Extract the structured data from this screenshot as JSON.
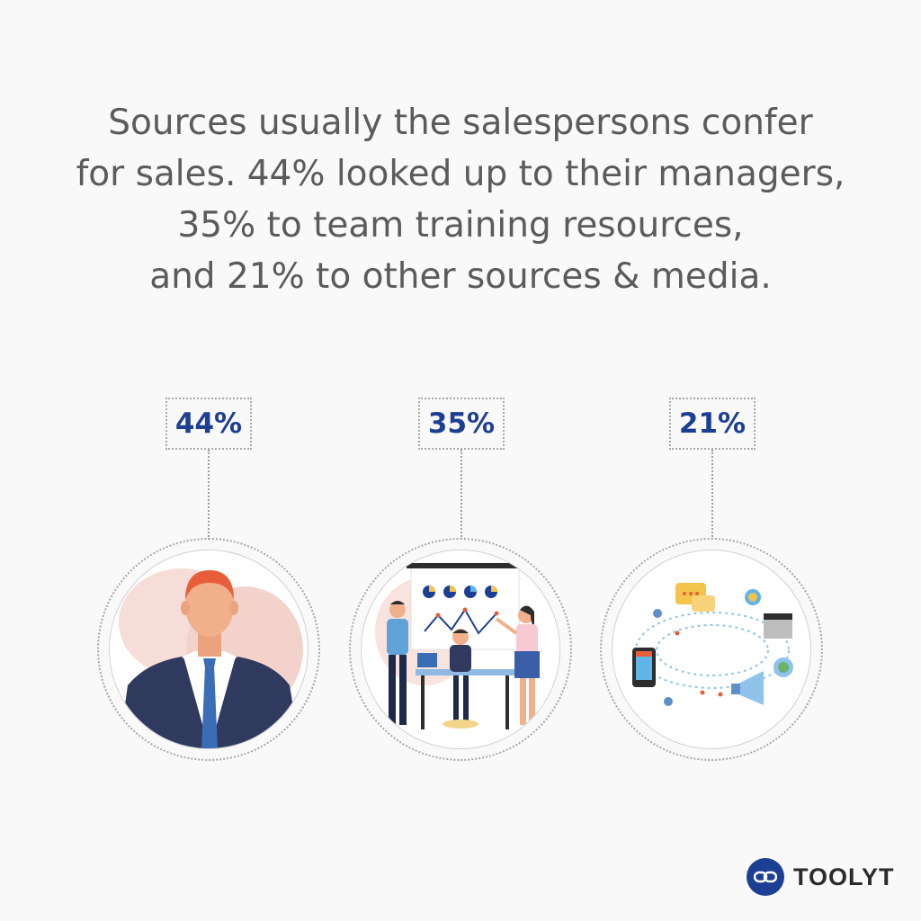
{
  "headline": {
    "line1": "Sources usually the salespersons confer",
    "line2": "for sales. 44% looked up to their managers,",
    "line3": "35% to team training resources,",
    "line4": "and 21% to other sources & media."
  },
  "stats": [
    {
      "value_label": "44%",
      "value": 44,
      "illustration": "manager-illustration"
    },
    {
      "value_label": "35%",
      "value": 35,
      "illustration": "team-training-illustration"
    },
    {
      "value_label": "21%",
      "value": 21,
      "illustration": "media-sources-illustration"
    }
  ],
  "brand": {
    "name": "TOOLYT",
    "logo_icon": "link-logo-icon"
  },
  "colors": {
    "accent": "#1d3f93",
    "text": "#5b5b5b",
    "background": "#f9f9f9"
  }
}
